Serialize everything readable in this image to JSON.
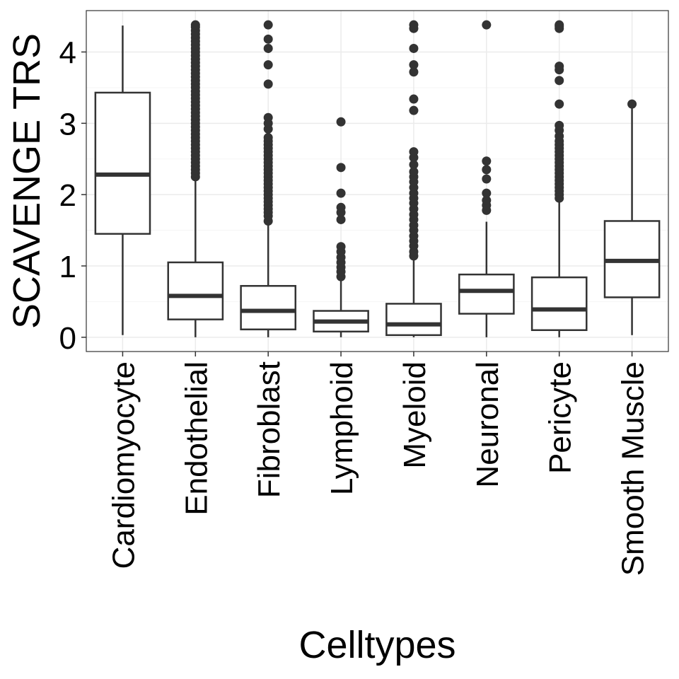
{
  "chart_data": {
    "type": "box",
    "xlabel": "Celltypes",
    "ylabel": "SCAVENGE TRS",
    "ylim": [
      -0.2,
      4.58
    ],
    "yticks": [
      0,
      1,
      2,
      3,
      4
    ],
    "grid": true,
    "legend": "none",
    "categories": [
      "Cardiomyocyte",
      "Endothelial",
      "Fibroblast",
      "Lymphoid",
      "Myeloid",
      "Neuronal",
      "Pericyte",
      "Smooth Muscle"
    ],
    "boxes": [
      {
        "category": "Cardiomyocyte",
        "whisker_low": 0.03,
        "q1": 1.45,
        "median": 2.28,
        "q3": 3.43,
        "whisker_high": 4.37,
        "outliers": []
      },
      {
        "category": "Endothelial",
        "whisker_low": 0.0,
        "q1": 0.25,
        "median": 0.58,
        "q3": 1.05,
        "whisker_high": 2.22,
        "outliers": [
          2.25,
          2.3,
          2.35,
          2.4,
          2.45,
          2.5,
          2.55,
          2.6,
          2.65,
          2.7,
          2.75,
          2.8,
          2.85,
          2.9,
          2.95,
          3.0,
          3.05,
          3.1,
          3.15,
          3.2,
          3.25,
          3.3,
          3.35,
          3.4,
          3.45,
          3.5,
          3.55,
          3.6,
          3.65,
          3.7,
          3.75,
          3.8,
          3.85,
          3.9,
          3.95,
          4.0,
          4.05,
          4.1,
          4.15,
          4.2,
          4.25,
          4.3,
          4.35,
          4.38
        ]
      },
      {
        "category": "Fibroblast",
        "whisker_low": 0.0,
        "q1": 0.11,
        "median": 0.37,
        "q3": 0.72,
        "whisker_high": 1.6,
        "outliers": [
          1.63,
          1.7,
          1.75,
          1.8,
          1.85,
          1.9,
          1.95,
          2.0,
          2.05,
          2.1,
          2.15,
          2.2,
          2.25,
          2.3,
          2.35,
          2.4,
          2.45,
          2.5,
          2.55,
          2.6,
          2.65,
          2.7,
          2.75,
          2.8,
          2.92,
          3.0,
          3.08,
          3.55,
          3.82,
          4.05,
          4.18,
          4.38
        ]
      },
      {
        "category": "Lymphoid",
        "whisker_low": 0.0,
        "q1": 0.08,
        "median": 0.22,
        "q3": 0.37,
        "whisker_high": 0.8,
        "outliers": [
          0.85,
          0.92,
          0.98,
          1.05,
          1.12,
          1.2,
          1.27,
          1.65,
          1.75,
          1.82,
          2.02,
          2.38,
          3.02
        ]
      },
      {
        "category": "Myeloid",
        "whisker_low": 0.0,
        "q1": 0.03,
        "median": 0.18,
        "q3": 0.47,
        "whisker_high": 1.1,
        "outliers": [
          1.14,
          1.2,
          1.28,
          1.35,
          1.42,
          1.5,
          1.57,
          1.65,
          1.72,
          1.8,
          1.88,
          1.95,
          2.02,
          2.1,
          2.18,
          2.25,
          2.32,
          2.42,
          2.52,
          2.6,
          3.18,
          3.34,
          3.72,
          3.82,
          4.05,
          4.33,
          4.38
        ]
      },
      {
        "category": "Neuronal",
        "whisker_low": 0.0,
        "q1": 0.33,
        "median": 0.65,
        "q3": 0.88,
        "whisker_high": 1.62,
        "outliers": [
          1.78,
          1.85,
          1.92,
          2.02,
          2.22,
          2.35,
          2.47,
          4.38
        ]
      },
      {
        "category": "Pericyte",
        "whisker_low": 0.0,
        "q1": 0.1,
        "median": 0.39,
        "q3": 0.84,
        "whisker_high": 1.92,
        "outliers": [
          1.95,
          2.0,
          2.05,
          2.1,
          2.15,
          2.2,
          2.25,
          2.3,
          2.35,
          2.4,
          2.45,
          2.5,
          2.55,
          2.6,
          2.65,
          2.7,
          2.75,
          2.82,
          2.9,
          2.97,
          3.27,
          3.6,
          3.75,
          3.8,
          4.33,
          4.36,
          4.38
        ]
      },
      {
        "category": "Smooth Muscle",
        "whisker_low": 0.03,
        "q1": 0.56,
        "median": 1.07,
        "q3": 1.63,
        "whisker_high": 3.25,
        "outliers": [
          3.27
        ]
      }
    ],
    "colors": {
      "box_stroke": "#333333",
      "outlier": "#333333",
      "grid_major": "#ebebeb",
      "grid_minor": "#f5f5f5",
      "panel_border": "#333333",
      "background": "#ffffff"
    }
  }
}
